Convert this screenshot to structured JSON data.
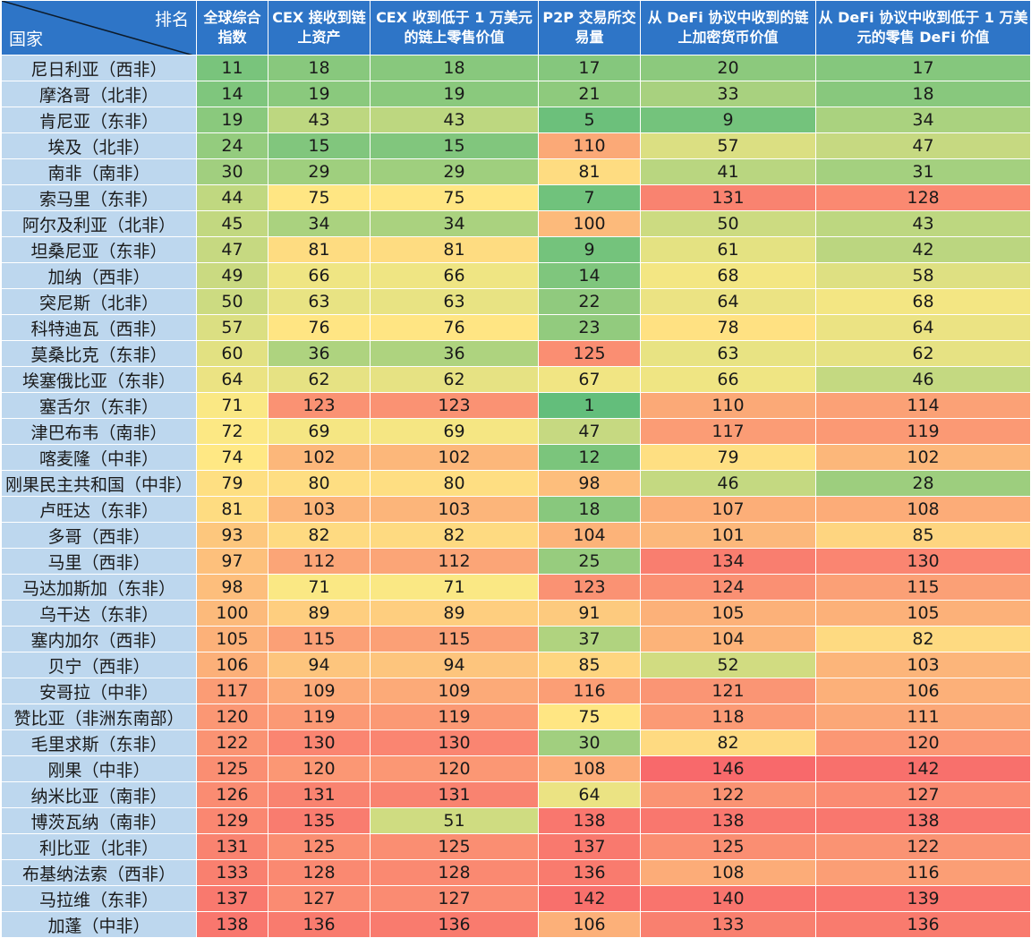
{
  "table": {
    "corner_rank": "排名",
    "corner_country": "国家",
    "columns": [
      "全球综合指数",
      "CEX 接收到链上资产",
      "CEX 收到低于 1 万美元的链上零售价值",
      "P2P 交易所交易量",
      "从 DeFi 协议中收到的链上加密货币价值",
      "从 DeFi 协议中收到低于 1 万美元的零售 DeFi 价值"
    ],
    "color_scale": {
      "low": "#63be7b",
      "mid": "#ffe984",
      "high": "#f8696b",
      "min": 1,
      "max": 146
    }
  },
  "chart_data": {
    "type": "table",
    "categories": [
      "尼日利亚（西非）",
      "摩洛哥（北非）",
      "肯尼亚（东非）",
      "埃及（北非）",
      "南非（南非）",
      "索马里（东非）",
      "阿尔及利亚（北非）",
      "坦桑尼亚（东非）",
      "加纳（西非）",
      "突尼斯（北非）",
      "科特迪瓦（西非）",
      "莫桑比克（东非）",
      "埃塞俄比亚（东非）",
      "塞舌尔（东非）",
      "津巴布韦（南非）",
      "喀麦隆（中非）",
      "刚果民主共和国（中非）",
      "卢旺达（东非）",
      "多哥（西非）",
      "马里（西非）",
      "马达加斯加（东非）",
      "乌干达（东非）",
      "塞内加尔（西非）",
      "贝宁（西非）",
      "安哥拉（中非）",
      "赞比亚（非洲东南部）",
      "毛里求斯（东非）",
      "刚果（中非）",
      "纳米比亚（南非）",
      "博茨瓦纳（南非）",
      "利比亚（北非）",
      "布基纳法索（西非）",
      "马拉维（东非）",
      "加蓬（中非）"
    ],
    "series": [
      {
        "name": "全球综合指数",
        "values": [
          11,
          14,
          19,
          24,
          30,
          44,
          45,
          47,
          49,
          50,
          57,
          60,
          64,
          71,
          72,
          74,
          79,
          81,
          93,
          97,
          98,
          100,
          105,
          106,
          117,
          120,
          122,
          125,
          126,
          129,
          131,
          133,
          137,
          138
        ]
      },
      {
        "name": "CEX 接收到链上资产",
        "values": [
          18,
          19,
          43,
          15,
          29,
          75,
          34,
          81,
          66,
          63,
          76,
          36,
          62,
          123,
          69,
          102,
          80,
          103,
          82,
          112,
          71,
          89,
          115,
          94,
          109,
          119,
          130,
          120,
          131,
          135,
          125,
          128,
          127,
          136
        ]
      },
      {
        "name": "CEX 收到低于 1 万美元的链上零售价值",
        "values": [
          18,
          19,
          43,
          15,
          29,
          75,
          34,
          81,
          66,
          63,
          76,
          36,
          62,
          123,
          69,
          102,
          80,
          103,
          82,
          112,
          71,
          89,
          115,
          94,
          109,
          119,
          130,
          120,
          131,
          51,
          125,
          128,
          127,
          136
        ]
      },
      {
        "name": "P2P 交易所交易量",
        "values": [
          17,
          21,
          5,
          110,
          81,
          7,
          100,
          9,
          14,
          22,
          23,
          125,
          67,
          1,
          47,
          12,
          98,
          18,
          104,
          25,
          123,
          91,
          37,
          85,
          116,
          75,
          30,
          108,
          64,
          138,
          137,
          136,
          142,
          106
        ]
      },
      {
        "name": "从 DeFi 协议中收到的链上加密货币价值",
        "values": [
          20,
          33,
          9,
          57,
          41,
          131,
          50,
          61,
          68,
          64,
          78,
          63,
          66,
          110,
          117,
          79,
          46,
          107,
          101,
          134,
          124,
          105,
          104,
          52,
          121,
          118,
          82,
          146,
          122,
          138,
          125,
          108,
          140,
          133
        ]
      },
      {
        "name": "从 DeFi 协议中收到低于 1 万美元的零售 DeFi 价值",
        "values": [
          17,
          18,
          34,
          47,
          31,
          128,
          43,
          42,
          58,
          68,
          64,
          62,
          46,
          114,
          119,
          102,
          28,
          108,
          85,
          130,
          115,
          105,
          82,
          103,
          106,
          111,
          120,
          142,
          127,
          138,
          122,
          116,
          139,
          136
        ]
      }
    ]
  }
}
